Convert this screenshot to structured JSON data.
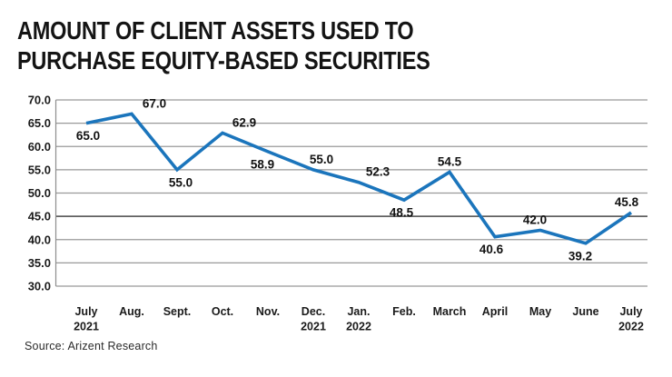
{
  "title": {
    "line1": "AMOUNT OF CLIENT ASSETS USED TO",
    "line2": "PURCHASE EQUITY-BASED SECURITIES"
  },
  "source": {
    "text": "Source: Arizent Research"
  },
  "colors": {
    "line": "#1B75BC",
    "grid": "#999999",
    "grid_emphasis": "#474747",
    "axis": "#8c8c8c",
    "label_text": "#1a1a1a"
  },
  "chart_data": {
    "type": "line",
    "title": "AMOUNT OF CLIENT ASSETS USED TO PURCHASE EQUITY-BASED SECURITIES",
    "categories": [
      "July 2021",
      "Aug.",
      "Sept.",
      "Oct.",
      "Nov.",
      "Dec. 2021",
      "Jan. 2022",
      "Feb.",
      "March",
      "April",
      "May",
      "June",
      "July 2022"
    ],
    "values": [
      65.0,
      67.0,
      55.0,
      62.9,
      58.9,
      55.0,
      52.3,
      48.5,
      54.5,
      40.6,
      42.0,
      39.2,
      45.8
    ],
    "data_labels": [
      "65.0",
      "67.0",
      "55.0",
      "62.9",
      "58.9",
      "55.0",
      "52.3",
      "48.5",
      "54.5",
      "40.6",
      "42.0",
      "39.2",
      "45.8"
    ],
    "xlabel": "",
    "ylabel": "",
    "ylim": [
      30.0,
      70.0
    ],
    "ytick_step": 5.0,
    "ytick_labels": [
      "70.0",
      "65.0",
      "60.0",
      "55.0",
      "50.0",
      "45.0",
      "40.0",
      "35.0",
      "30.0"
    ],
    "grid": "horizontal",
    "legend": "none",
    "layout_hints": {
      "label_positions": [
        "below",
        "above",
        "below",
        "above",
        "below",
        "above",
        "above",
        "below",
        "above",
        "below",
        "above",
        "below",
        "above"
      ],
      "label_dx": [
        2,
        25,
        4,
        24,
        -6,
        9,
        21,
        -3,
        0,
        -4,
        -6,
        -6,
        -5
      ],
      "emphasized_gridline": 45.0
    }
  }
}
